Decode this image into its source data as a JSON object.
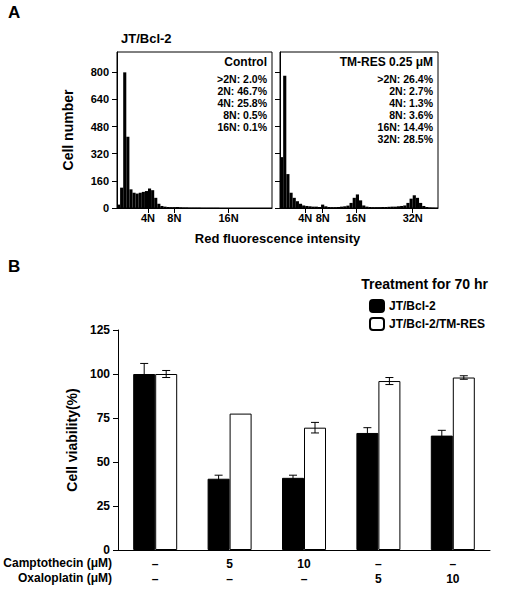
{
  "chart_data": [
    {
      "panel": "A",
      "type": "histogram",
      "title": "JT/Bcl-2",
      "subtitle": "Control",
      "annotations": [
        ">2N: 2.0%",
        "2N: 46.7%",
        "4N: 25.8%",
        "8N: 0.5%",
        "16N: 0.1%"
      ],
      "xlabel": "Red fluorescence intensity",
      "ylabel": "Cell number",
      "bins": [
        0,
        2,
        4,
        6,
        8,
        10,
        12,
        14,
        16,
        18,
        20,
        22,
        24,
        26,
        28,
        30,
        32,
        34,
        36,
        38,
        40,
        42,
        44,
        46,
        48,
        50,
        52,
        54,
        56,
        58,
        60,
        62,
        64,
        66,
        68,
        70,
        72,
        74,
        76,
        78,
        80,
        82,
        84,
        86,
        88,
        90,
        92,
        94,
        96,
        98,
        100
      ],
      "counts": [
        20,
        120,
        800,
        420,
        110,
        90,
        85,
        90,
        95,
        100,
        115,
        105,
        60,
        25,
        12,
        8,
        6,
        5,
        5,
        6,
        4,
        3,
        3,
        2,
        2,
        2,
        2,
        1,
        1,
        1,
        1,
        1,
        1,
        0,
        0,
        0,
        0,
        0,
        0,
        0,
        0,
        0,
        0,
        0,
        0,
        0,
        0,
        0,
        0,
        0
      ],
      "color": "#000000",
      "xlim": [
        0,
        100
      ],
      "xticks": [
        {
          "value": 20,
          "label": "4N"
        },
        {
          "value": 37,
          "label": "8N"
        },
        {
          "value": 72,
          "label": "16N"
        }
      ],
      "ylim": [
        0,
        920
      ],
      "yticks": [
        0,
        160,
        320,
        480,
        640,
        800
      ],
      "grid": false
    },
    {
      "type": "histogram",
      "subtitle": "TM-RES 0.25 μM",
      "annotations": [
        ">2N: 26.4%",
        "2N: 2.7%",
        "4N: 1.3%",
        "8N: 3.6%",
        "16N: 14.4%",
        "32N: 28.5%"
      ],
      "bins": [
        0,
        2,
        4,
        6,
        8,
        10,
        12,
        14,
        16,
        18,
        20,
        22,
        24,
        26,
        28,
        30,
        32,
        34,
        36,
        38,
        40,
        42,
        44,
        46,
        48,
        50,
        52,
        54,
        56,
        58,
        60,
        62,
        64,
        66,
        68,
        70,
        72,
        74,
        76,
        78,
        80,
        82,
        84,
        86,
        88,
        90,
        92,
        94,
        96,
        98,
        100
      ],
      "counts": [
        300,
        780,
        200,
        90,
        60,
        40,
        25,
        15,
        12,
        10,
        8,
        8,
        6,
        20,
        10,
        6,
        5,
        5,
        6,
        8,
        10,
        14,
        30,
        60,
        80,
        45,
        15,
        8,
        6,
        5,
        5,
        5,
        6,
        6,
        7,
        8,
        8,
        10,
        12,
        15,
        30,
        55,
        75,
        60,
        30,
        12,
        6,
        3,
        2,
        1
      ],
      "color": "#000000",
      "xlim": [
        0,
        100
      ],
      "xticks": [
        {
          "value": 16,
          "label": "4N"
        },
        {
          "value": 27,
          "label": "8N"
        },
        {
          "value": 48,
          "label": "16N"
        },
        {
          "value": 84,
          "label": "32N"
        }
      ],
      "ylim": [
        0,
        920
      ],
      "yticks": [
        0,
        160,
        320,
        480,
        640,
        800
      ],
      "tick_labels": "x",
      "grid": false
    },
    {
      "panel": "B",
      "type": "bar",
      "title": "Treatment for 70 hr",
      "ylabel": "Cell viability(%)",
      "categories": [
        "–\n–",
        "5\n–",
        "10\n–",
        "–\n5",
        "–\n10"
      ],
      "row_labels": [
        "Camptothecin (μM)",
        "Oxaloplatin (μM)"
      ],
      "series": [
        {
          "name": "JT/Bcl-2",
          "color": "#000000",
          "values": [
            100,
            40.5,
            41,
            66.5,
            65
          ],
          "errors": [
            6,
            2,
            1.5,
            3,
            3
          ]
        },
        {
          "name": "JT/Bcl-2/TM-RES",
          "color": "#ffffff",
          "values": [
            100,
            77.5,
            69.5,
            96,
            98
          ],
          "errors": [
            2,
            0,
            3,
            2,
            1
          ]
        }
      ],
      "ylim": [
        0,
        125
      ],
      "yticks": [
        0,
        25,
        50,
        75,
        100,
        125
      ],
      "legend": "upper right",
      "grid": false
    }
  ]
}
